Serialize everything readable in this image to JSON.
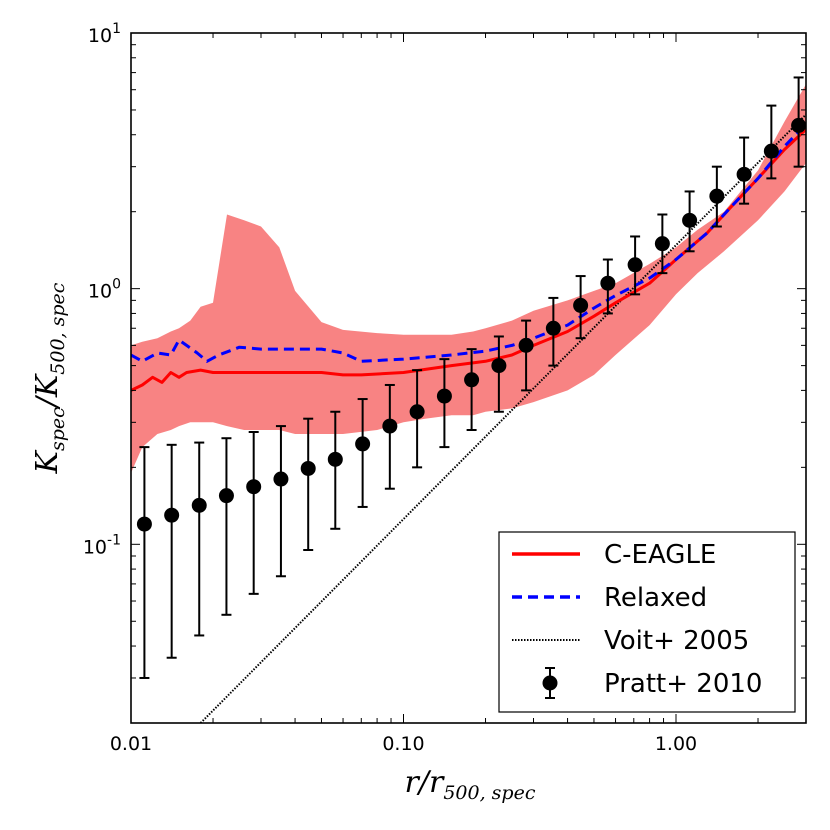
{
  "chart_data": {
    "type": "line",
    "xscale": "log",
    "yscale": "log",
    "xlim": [
      0.01,
      3.0
    ],
    "ylim": [
      0.02,
      10
    ],
    "xlabel": {
      "main": "r/r",
      "sub": "500, spec"
    },
    "ylabel": {
      "main": "K",
      "sub1": "spec",
      "mid": "/K",
      "sub2": "500, spec"
    },
    "x_ticks": [
      {
        "value": 0.01,
        "label": "0.01"
      },
      {
        "value": 0.1,
        "label": "0.10"
      },
      {
        "value": 1.0,
        "label": "1.00"
      }
    ],
    "y_ticks": [
      {
        "value": 0.1,
        "base": "10",
        "exp": "-1"
      },
      {
        "value": 1,
        "base": "10",
        "exp": "0"
      },
      {
        "value": 10,
        "base": "10",
        "exp": "1"
      }
    ],
    "band": {
      "name": "C-EAGLE scatter",
      "color": "#f87c7c",
      "x": [
        0.01,
        0.011,
        0.0125,
        0.014,
        0.015,
        0.0165,
        0.018,
        0.02,
        0.0225,
        0.026,
        0.03,
        0.035,
        0.04,
        0.05,
        0.06,
        0.08,
        0.1,
        0.12,
        0.15,
        0.18,
        0.2,
        0.25,
        0.3,
        0.4,
        0.5,
        0.6,
        0.8,
        1.0,
        1.2,
        1.5,
        2.0,
        2.5,
        3.0
      ],
      "upper": [
        0.6,
        0.62,
        0.64,
        0.68,
        0.7,
        0.75,
        0.85,
        0.88,
        1.95,
        1.85,
        1.75,
        1.45,
        0.98,
        0.74,
        0.69,
        0.67,
        0.66,
        0.66,
        0.66,
        0.68,
        0.7,
        0.75,
        0.82,
        0.9,
        0.98,
        1.05,
        1.25,
        1.45,
        1.7,
        2.0,
        2.9,
        4.5,
        6.3
      ],
      "lower": [
        0.19,
        0.24,
        0.27,
        0.28,
        0.29,
        0.3,
        0.3,
        0.3,
        0.29,
        0.28,
        0.28,
        0.28,
        0.27,
        0.27,
        0.27,
        0.28,
        0.3,
        0.31,
        0.32,
        0.32,
        0.33,
        0.34,
        0.36,
        0.4,
        0.46,
        0.55,
        0.72,
        0.95,
        1.15,
        1.4,
        1.85,
        2.4,
        3.1
      ]
    },
    "series": [
      {
        "name": "C-EAGLE",
        "color": "#ff0000",
        "style": "solid",
        "x": [
          0.01,
          0.011,
          0.012,
          0.013,
          0.014,
          0.015,
          0.016,
          0.018,
          0.02,
          0.025,
          0.03,
          0.04,
          0.05,
          0.06,
          0.07,
          0.1,
          0.15,
          0.2,
          0.25,
          0.3,
          0.4,
          0.5,
          0.6,
          0.8,
          1.0,
          1.3,
          1.6,
          2.0,
          2.5,
          3.0
        ],
        "y": [
          0.4,
          0.42,
          0.45,
          0.43,
          0.47,
          0.45,
          0.47,
          0.48,
          0.47,
          0.47,
          0.47,
          0.47,
          0.47,
          0.46,
          0.46,
          0.47,
          0.5,
          0.52,
          0.55,
          0.6,
          0.68,
          0.78,
          0.88,
          1.05,
          1.3,
          1.65,
          2.1,
          2.7,
          3.5,
          4.2
        ]
      },
      {
        "name": "Relaxed",
        "color": "#0000ff",
        "style": "dashed",
        "x": [
          0.01,
          0.011,
          0.0125,
          0.014,
          0.015,
          0.016,
          0.0175,
          0.019,
          0.021,
          0.025,
          0.03,
          0.04,
          0.05,
          0.06,
          0.07,
          0.1,
          0.15,
          0.2,
          0.25,
          0.3,
          0.4,
          0.5,
          0.6,
          0.8,
          1.0,
          1.3,
          1.6,
          2.0,
          2.5,
          3.0
        ],
        "y": [
          0.55,
          0.52,
          0.56,
          0.55,
          0.63,
          0.6,
          0.56,
          0.52,
          0.55,
          0.59,
          0.58,
          0.58,
          0.58,
          0.56,
          0.52,
          0.53,
          0.55,
          0.57,
          0.6,
          0.64,
          0.72,
          0.84,
          0.94,
          1.1,
          1.3,
          1.65,
          2.1,
          2.7,
          3.6,
          4.4
        ]
      },
      {
        "name": "Voit+ 2005",
        "color": "#000000",
        "style": "dotted",
        "x": [
          0.018,
          3.0
        ],
        "y": [
          0.02,
          4.8
        ]
      }
    ],
    "errorbars": {
      "name": "Pratt+ 2010",
      "color": "#000000",
      "x": [
        0.0112,
        0.0141,
        0.0178,
        0.0224,
        0.0282,
        0.0355,
        0.0447,
        0.0562,
        0.0708,
        0.0891,
        0.1122,
        0.1413,
        0.1778,
        0.2239,
        0.2818,
        0.3548,
        0.4467,
        0.5623,
        0.7079,
        0.8913,
        1.122,
        1.4125,
        1.7783,
        2.2387,
        2.8184
      ],
      "y": [
        0.12,
        0.13,
        0.142,
        0.155,
        0.168,
        0.18,
        0.198,
        0.215,
        0.247,
        0.29,
        0.33,
        0.38,
        0.44,
        0.5,
        0.6,
        0.7,
        0.86,
        1.05,
        1.24,
        1.5,
        1.85,
        2.3,
        2.8,
        3.45,
        4.35
      ],
      "yerr_low": [
        0.03,
        0.036,
        0.044,
        0.053,
        0.064,
        0.075,
        0.095,
        0.115,
        0.14,
        0.165,
        0.2,
        0.24,
        0.28,
        0.33,
        0.4,
        0.5,
        0.64,
        0.8,
        0.95,
        1.15,
        1.4,
        1.75,
        2.15,
        2.7,
        3.0
      ],
      "yerr_high": [
        0.24,
        0.245,
        0.25,
        0.26,
        0.275,
        0.29,
        0.31,
        0.33,
        0.37,
        0.42,
        0.48,
        0.53,
        0.58,
        0.65,
        0.75,
        0.92,
        1.12,
        1.3,
        1.6,
        1.95,
        2.4,
        3.0,
        3.9,
        5.2,
        6.7
      ]
    },
    "legend": {
      "position": "lower-right",
      "entries": [
        {
          "label": "C-EAGLE",
          "kind": "solid",
          "color": "#ff0000"
        },
        {
          "label": "Relaxed",
          "kind": "dashed",
          "color": "#0000ff"
        },
        {
          "label": "Voit+ 2005",
          "kind": "dotted",
          "color": "#000000"
        },
        {
          "label": "Pratt+ 2010",
          "kind": "errorbar",
          "color": "#000000"
        }
      ]
    }
  }
}
